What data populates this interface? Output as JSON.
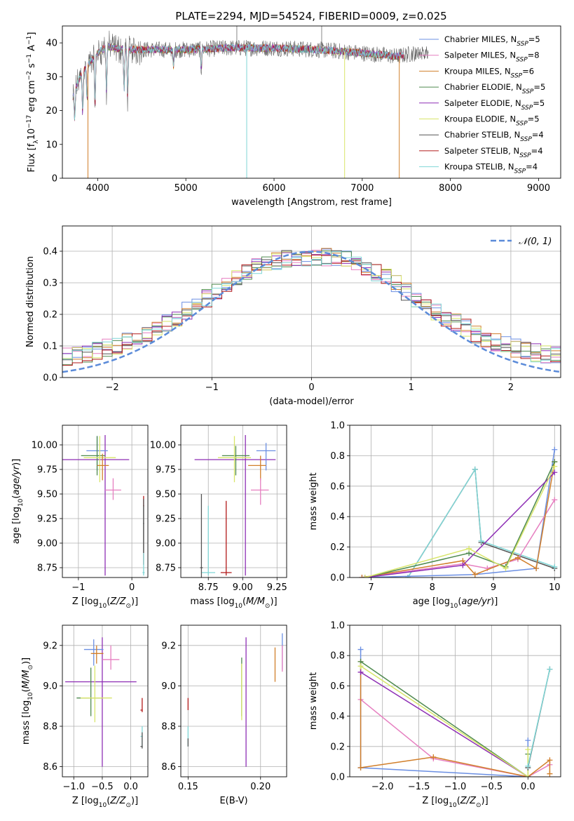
{
  "figure": {
    "title": "PLATE=2294, MJD=54524, FIBERID=0009, z=0.025"
  },
  "model_colors": {
    "Chabrier MILES": "#6b8fe3",
    "Salpeter MILES": "#e67fc0",
    "Kroupa MILES": "#d17f2b",
    "Chabrier ELODIE": "#4f8a4f",
    "Salpeter ELODIE": "#8e2fb5",
    "Kroupa ELODIE": "#d8e56a",
    "Chabrier STELIB": "#555555",
    "Salpeter STELIB": "#b21a1a",
    "Kroupa STELIB": "#7fd6d6",
    "Kroupa MILES weights": "#e07b2e",
    "Kroupa ELODIE weights": "#b8e05a",
    "normal curve": "#5b8bd9"
  },
  "chart_data": [
    {
      "id": "spectrum",
      "type": "line",
      "title": "PLATE=2294, MJD=54524, FIBERID=0009, z=0.025",
      "xlabel": "wavelength [Angstrom, rest frame]",
      "ylabel": "Flux [fλ10⁻¹⁷ erg cm⁻² s⁻¹ A⁻¹]",
      "xlim": [
        3600,
        9250
      ],
      "ylim": [
        0,
        45
      ],
      "xticks": [
        4000,
        5000,
        6000,
        7000,
        8000,
        9000
      ],
      "yticks": [
        0,
        10,
        20,
        30,
        40
      ],
      "grid": false,
      "legend_position": "top-right",
      "legend": [
        "Chabrier MILES, N_SSP=5",
        "Salpeter MILES, N_SSP=8",
        "Kroupa MILES, N_SSP=6",
        "Chabrier ELODIE, N_SSP=5",
        "Salpeter ELODIE, N_SSP=5",
        "Kroupa ELODIE, N_SSP=5",
        "Chabrier STELIB, N_SSP=4",
        "Salpeter STELIB, N_SSP=4",
        "Kroupa STELIB, N_SSP=4"
      ],
      "continuum": {
        "x": [
          3720,
          3800,
          3900,
          4000,
          4100,
          4300,
          4500,
          5000,
          5500,
          6000,
          6500,
          7000,
          7200,
          7400,
          7600,
          8000,
          8500,
          9000
        ],
        "y": [
          24,
          30,
          34,
          37,
          39,
          38,
          38,
          38,
          38.5,
          38.5,
          38,
          37,
          36.5,
          36,
          37,
          37,
          37,
          37
        ]
      },
      "drop_lines": [
        {
          "x": 3890,
          "series": "Kroupa MILES"
        },
        {
          "x": 5690,
          "series": "Kroupa STELIB"
        },
        {
          "x": 6800,
          "series": "Kroupa ELODIE"
        },
        {
          "x": 7420,
          "series": "Kroupa MILES"
        }
      ],
      "absorption_dips": [
        {
          "x": 3740,
          "depth": 8
        },
        {
          "x": 3830,
          "depth": 12
        },
        {
          "x": 3880,
          "depth": 10
        },
        {
          "x": 3970,
          "depth": 15
        },
        {
          "x": 4100,
          "depth": 14
        },
        {
          "x": 4300,
          "depth": 12
        },
        {
          "x": 4340,
          "depth": 14
        },
        {
          "x": 4860,
          "depth": 5
        },
        {
          "x": 5175,
          "depth": 6
        }
      ]
    },
    {
      "id": "residuals",
      "type": "step",
      "xlabel": "(data-model)/error",
      "ylabel": "Normed distribution",
      "xlim": [
        -2.5,
        2.5
      ],
      "ylim": [
        0,
        0.48
      ],
      "xticks": [
        -2,
        -1,
        0,
        1,
        2
      ],
      "yticks": [
        0.0,
        0.1,
        0.2,
        0.3,
        0.4
      ],
      "grid": true,
      "legend_position": "top-right",
      "normal_label": "𝒩(0, 1)",
      "bin_width": 0.1
    },
    {
      "id": "age-vs-Z",
      "type": "errorbar",
      "xlabel": "Z [log₁₀(Z/Z⊙)]",
      "ylabel": "age  [log₁₀(age/yr)]",
      "xlim": [
        -1.3,
        0.3
      ],
      "ylim": [
        8.65,
        10.2
      ],
      "xticks": [
        -1,
        0
      ],
      "yticks": [
        8.75,
        9.0,
        9.25,
        9.5,
        9.75,
        10.0
      ],
      "grid": true,
      "points": [
        {
          "series": "Salpeter ELODIE",
          "x": -0.5,
          "y": 9.85,
          "xerr": [
            0.8,
            0.45
          ],
          "yerr": [
            1.18,
            0.25
          ]
        },
        {
          "series": "Chabrier MILES",
          "x": -0.65,
          "y": 9.94,
          "xerr": [
            0.2,
            0.2
          ],
          "yerr": [
            0.2,
            0.15
          ]
        },
        {
          "series": "Chabrier ELODIE",
          "x": -0.65,
          "y": 9.89,
          "xerr": [
            0.3,
            0.15
          ],
          "yerr": [
            0.2,
            0.2
          ]
        },
        {
          "series": "Kroupa ELODIE",
          "x": -0.6,
          "y": 9.87,
          "xerr": [
            0.3,
            0.3
          ],
          "yerr": [
            0.25,
            0.22
          ]
        },
        {
          "series": "Kroupa MILES",
          "x": -0.55,
          "y": 9.79,
          "xerr": [
            0.1,
            0.12
          ],
          "yerr": [
            0.15,
            0.12
          ]
        },
        {
          "series": "Salpeter MILES",
          "x": -0.35,
          "y": 9.54,
          "xerr": [
            0.15,
            0.15
          ],
          "yerr": [
            0.1,
            0.12
          ]
        },
        {
          "series": "Salpeter STELIB",
          "x": 0.22,
          "y": 9.38,
          "xerr": [
            0.01,
            0.01
          ],
          "yerr": [
            0.6,
            0.1
          ]
        },
        {
          "series": "Kroupa STELIB",
          "x": 0.22,
          "y": 8.7,
          "xerr": [
            0.02,
            0.02
          ],
          "yerr": [
            0.03,
            0.68
          ]
        },
        {
          "series": "Chabrier STELIB",
          "x": 0.22,
          "y": 9.2,
          "xerr": [
            0.01,
            0.01
          ],
          "yerr": [
            0.3,
            0.25
          ]
        }
      ]
    },
    {
      "id": "age-vs-mass",
      "type": "errorbar",
      "xlabel": "mass [log₁₀(M/M⊙)]",
      "ylabel": "",
      "xlim": [
        8.55,
        9.32
      ],
      "ylim": [
        8.65,
        10.2
      ],
      "xticks": [
        8.75,
        9.0,
        9.25
      ],
      "yticks": [
        8.75,
        9.0,
        9.25,
        9.5,
        9.75,
        10.0
      ],
      "grid": true,
      "points": [
        {
          "series": "Salpeter ELODIE",
          "x": 9.02,
          "y": 9.85,
          "xerr": [
            0.37,
            0.22
          ],
          "yerr": [
            1.18,
            0.25
          ]
        },
        {
          "series": "Chabrier MILES",
          "x": 9.17,
          "y": 9.94,
          "xerr": [
            0.07,
            0.07
          ],
          "yerr": [
            0.2,
            0.08
          ]
        },
        {
          "series": "Chabrier ELODIE",
          "x": 8.95,
          "y": 9.89,
          "xerr": [
            0.1,
            0.1
          ],
          "yerr": [
            0.2,
            0.1
          ]
        },
        {
          "series": "Kroupa ELODIE",
          "x": 8.94,
          "y": 9.87,
          "xerr": [
            0.12,
            0.12
          ],
          "yerr": [
            0.25,
            0.22
          ]
        },
        {
          "series": "Kroupa MILES",
          "x": 9.13,
          "y": 9.79,
          "xerr": [
            0.09,
            0.04
          ],
          "yerr": [
            0.15,
            0.1
          ]
        },
        {
          "series": "Salpeter MILES",
          "x": 9.13,
          "y": 9.54,
          "xerr": [
            0.07,
            0.06
          ],
          "yerr": [
            0.15,
            0.12
          ]
        },
        {
          "series": "Salpeter STELIB",
          "x": 8.88,
          "y": 8.7,
          "xerr": [
            0.04,
            0.04
          ],
          "yerr": [
            0.03,
            0.73
          ]
        },
        {
          "series": "Kroupa STELIB",
          "x": 8.75,
          "y": 8.7,
          "xerr": [
            0.05,
            0.05
          ],
          "yerr": [
            0.03,
            0.68
          ]
        },
        {
          "series": "Chabrier STELIB",
          "x": 8.7,
          "y": 8.75,
          "xerr": [
            0.01,
            0.01
          ],
          "yerr": [
            0.1,
            0.75
          ]
        }
      ]
    },
    {
      "id": "mass-weight-vs-age",
      "type": "line",
      "xlabel": "age  [log₁₀(age/yr)]",
      "ylabel": "mass weight",
      "xlim": [
        6.65,
        10.1
      ],
      "ylim": [
        0.0,
        1.0
      ],
      "xticks": [
        7,
        8,
        9,
        10
      ],
      "yticks": [
        0.0,
        0.2,
        0.4,
        0.6,
        0.8,
        1.0
      ],
      "grid": true,
      "series": [
        {
          "name": "Chabrier STELIB",
          "x": [
            7.6,
            8.7,
            8.8,
            10.0
          ],
          "y": [
            0.0,
            0.71,
            0.23,
            0.06
          ]
        },
        {
          "name": "Kroupa STELIB",
          "x": [
            7.6,
            8.7,
            8.8,
            10.0
          ],
          "y": [
            0.0,
            0.71,
            0.24,
            0.07
          ]
        },
        {
          "name": "Chabrier MILES",
          "x": [
            6.85,
            8.7,
            9.7,
            10.0
          ],
          "y": [
            0.0,
            0.02,
            0.06,
            0.84
          ]
        },
        {
          "name": "Salpeter MILES",
          "x": [
            6.85,
            8.5,
            8.9,
            9.4,
            10.0
          ],
          "y": [
            0.0,
            0.09,
            0.06,
            0.12,
            0.51
          ]
        },
        {
          "name": "Kroupa MILES",
          "x": [
            6.85,
            8.5,
            8.7,
            9.4,
            9.7,
            10.0
          ],
          "y": [
            0.0,
            0.11,
            0.02,
            0.13,
            0.06,
            0.76
          ]
        },
        {
          "name": "Chabrier ELODIE",
          "x": [
            6.9,
            8.6,
            9.2,
            10.0
          ],
          "y": [
            0.0,
            0.16,
            0.07,
            0.76
          ]
        },
        {
          "name": "Salpeter ELODIE",
          "x": [
            6.9,
            8.5,
            10.0
          ],
          "y": [
            0.0,
            0.08,
            0.69
          ]
        },
        {
          "name": "Kroupa ELODIE",
          "x": [
            6.9,
            8.6,
            9.2,
            10.0
          ],
          "y": [
            0.0,
            0.19,
            0.06,
            0.73
          ]
        }
      ]
    },
    {
      "id": "mass-vs-Z",
      "type": "errorbar",
      "xlabel": "Z [log₁₀(Z/Z⊙)]",
      "ylabel": "mass [log₁₀(M/M⊙)]",
      "xlim": [
        -1.2,
        0.3
      ],
      "ylim": [
        8.55,
        9.3
      ],
      "xticks": [
        -1,
        -0.5,
        0
      ],
      "yticks": [
        8.6,
        8.8,
        9.0,
        9.2
      ],
      "grid": true,
      "points": [
        {
          "series": "Salpeter ELODIE",
          "x": -0.5,
          "y": 9.02,
          "xerr": [
            0.65,
            0.6
          ],
          "yerr": [
            0.42,
            0.22
          ]
        },
        {
          "series": "Chabrier MILES",
          "x": -0.65,
          "y": 9.18,
          "xerr": [
            0.17,
            0.17
          ],
          "yerr": [
            0.08,
            0.05
          ]
        },
        {
          "series": "Chabrier ELODIE",
          "x": -0.7,
          "y": 8.94,
          "xerr": [
            0.25,
            0.2
          ],
          "yerr": [
            0.09,
            0.15
          ]
        },
        {
          "series": "Kroupa ELODIE",
          "x": -0.63,
          "y": 8.94,
          "xerr": [
            0.25,
            0.3
          ],
          "yerr": [
            0.12,
            0.16
          ]
        },
        {
          "series": "Kroupa MILES",
          "x": -0.6,
          "y": 9.16,
          "xerr": [
            0.1,
            0.12
          ],
          "yerr": [
            0.05,
            0.04
          ]
        },
        {
          "series": "Salpeter MILES",
          "x": -0.35,
          "y": 9.13,
          "xerr": [
            0.15,
            0.15
          ],
          "yerr": [
            0.05,
            0.07
          ]
        },
        {
          "series": "Salpeter STELIB",
          "x": 0.2,
          "y": 8.88,
          "xerr": [
            0.03,
            0.01
          ],
          "yerr": [
            0.01,
            0.06
          ]
        },
        {
          "series": "Kroupa STELIB",
          "x": 0.2,
          "y": 8.75,
          "xerr": [
            0.03,
            0.01
          ],
          "yerr": [
            0.05,
            0.05
          ]
        },
        {
          "series": "Chabrier STELIB",
          "x": 0.2,
          "y": 8.7,
          "xerr": [
            0.03,
            0.01
          ],
          "yerr": [
            0.01,
            0.07
          ]
        }
      ]
    },
    {
      "id": "mass-vs-ebv",
      "type": "errorbar",
      "xlabel": "E(B-V)",
      "ylabel": "",
      "xlim": [
        0.145,
        0.218
      ],
      "ylim": [
        8.55,
        9.3
      ],
      "xticks": [
        0.15,
        0.2
      ],
      "yticks": [
        8.6,
        8.8,
        9.0,
        9.2
      ],
      "grid": true,
      "points": [
        {
          "series": "Salpeter STELIB",
          "x": 0.15,
          "y": 8.88,
          "yerr": [
            0.0,
            0.06
          ]
        },
        {
          "series": "Kroupa STELIB",
          "x": 0.15,
          "y": 8.75,
          "yerr": [
            0.05,
            0.05
          ]
        },
        {
          "series": "Chabrier STELIB",
          "x": 0.15,
          "y": 8.7,
          "yerr": [
            0.0,
            0.04
          ]
        },
        {
          "series": "Chabrier ELODIE",
          "x": 0.187,
          "y": 9.0,
          "yerr": [
            0.15,
            0.14
          ]
        },
        {
          "series": "Kroupa ELODIE",
          "x": 0.187,
          "y": 8.97,
          "yerr": [
            0.14,
            0.14
          ]
        },
        {
          "series": "Salpeter ELODIE",
          "x": 0.19,
          "y": 8.9,
          "yerr": [
            0.3,
            0.34
          ]
        },
        {
          "series": "Kroupa MILES",
          "x": 0.21,
          "y": 9.05,
          "yerr": [
            0.03,
            0.14
          ]
        },
        {
          "series": "Chabrier MILES",
          "x": 0.215,
          "y": 9.2,
          "yerr": [
            0.12,
            0.06
          ]
        },
        {
          "series": "Salpeter MILES",
          "x": 0.215,
          "y": 9.13,
          "yerr": [
            0.06,
            0.07
          ]
        }
      ]
    },
    {
      "id": "mass-weight-vs-Z",
      "type": "line",
      "xlabel": "Z [log₁₀(Z/Z⊙)]",
      "ylabel": "mass weight",
      "xlim": [
        -2.45,
        0.45
      ],
      "ylim": [
        0.0,
        1.0
      ],
      "xticks": [
        -2.0,
        -1.5,
        -1.0,
        -0.5,
        0.0
      ],
      "yticks": [
        0.0,
        0.2,
        0.4,
        0.6,
        0.8,
        1.0
      ],
      "grid": true,
      "series": [
        {
          "name": "Chabrier MILES",
          "x": [
            -2.3,
            -2.3,
            0.0,
            0.0
          ],
          "y": [
            0.84,
            0.06,
            0.0,
            0.24
          ]
        },
        {
          "name": "Salpeter MILES",
          "x": [
            -2.3,
            -1.3,
            0.0,
            0.3
          ],
          "y": [
            0.51,
            0.12,
            0.0,
            0.08
          ]
        },
        {
          "name": "Kroupa MILES",
          "x": [
            -2.3,
            -2.3,
            -1.3,
            0.0,
            0.3,
            0.3
          ],
          "y": [
            0.76,
            0.06,
            0.13,
            0.0,
            0.11,
            0.02
          ]
        },
        {
          "name": "Chabrier ELODIE",
          "x": [
            -2.3,
            0.0,
            0.0
          ],
          "y": [
            0.76,
            0.0,
            0.15
          ]
        },
        {
          "name": "Salpeter ELODIE",
          "x": [
            -2.3,
            0.0
          ],
          "y": [
            0.69,
            0.0
          ]
        },
        {
          "name": "Kroupa ELODIE",
          "x": [
            -2.3,
            0.0,
            0.0
          ],
          "y": [
            0.73,
            0.0,
            0.18
          ]
        },
        {
          "name": "Chabrier STELIB",
          "x": [
            0.0,
            0.3
          ],
          "y": [
            0.06,
            0.71
          ]
        },
        {
          "name": "Kroupa STELIB",
          "x": [
            0.0,
            0.3
          ],
          "y": [
            0.07,
            0.71
          ]
        }
      ]
    }
  ]
}
